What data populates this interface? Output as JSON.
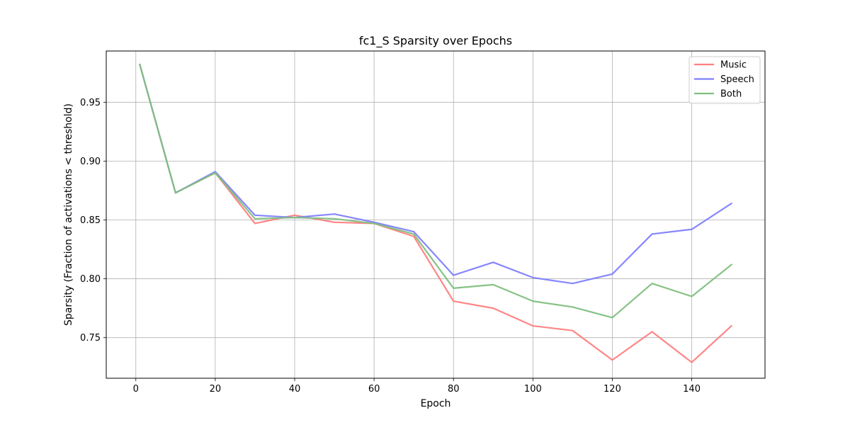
{
  "chart_data": {
    "type": "line",
    "title": "fc1_S Sparsity over Epochs",
    "xlabel": "Epoch",
    "ylabel": "Sparsity (Fraction of activations < threshold)",
    "xlim": [
      -7.45,
      158.45
    ],
    "ylim": [
      0.7155,
      0.9935
    ],
    "xticks": [
      0,
      20,
      40,
      60,
      80,
      100,
      120,
      140
    ],
    "yticks": [
      0.75,
      0.8,
      0.85,
      0.9,
      0.95
    ],
    "ytick_labels": [
      "0.75",
      "0.80",
      "0.85",
      "0.90",
      "0.95"
    ],
    "grid": true,
    "legend_position": "top-right",
    "x": [
      1,
      10,
      20,
      30,
      40,
      50,
      60,
      70,
      80,
      90,
      100,
      110,
      120,
      130,
      140,
      150
    ],
    "series": [
      {
        "name": "Music",
        "color": "#ff7f7f",
        "values": [
          0.982,
          0.873,
          0.89,
          0.847,
          0.854,
          0.848,
          0.847,
          0.836,
          0.781,
          0.775,
          0.76,
          0.756,
          0.731,
          0.755,
          0.729,
          0.76
        ]
      },
      {
        "name": "Speech",
        "color": "#7f7fff",
        "values": [
          0.982,
          0.873,
          0.891,
          0.854,
          0.852,
          0.855,
          0.848,
          0.84,
          0.803,
          0.814,
          0.801,
          0.796,
          0.804,
          0.838,
          0.842,
          0.864
        ]
      },
      {
        "name": "Both",
        "color": "#7fbf7f",
        "values": [
          0.982,
          0.873,
          0.89,
          0.851,
          0.852,
          0.851,
          0.847,
          0.838,
          0.792,
          0.795,
          0.781,
          0.776,
          0.767,
          0.796,
          0.785,
          0.812
        ]
      }
    ]
  }
}
